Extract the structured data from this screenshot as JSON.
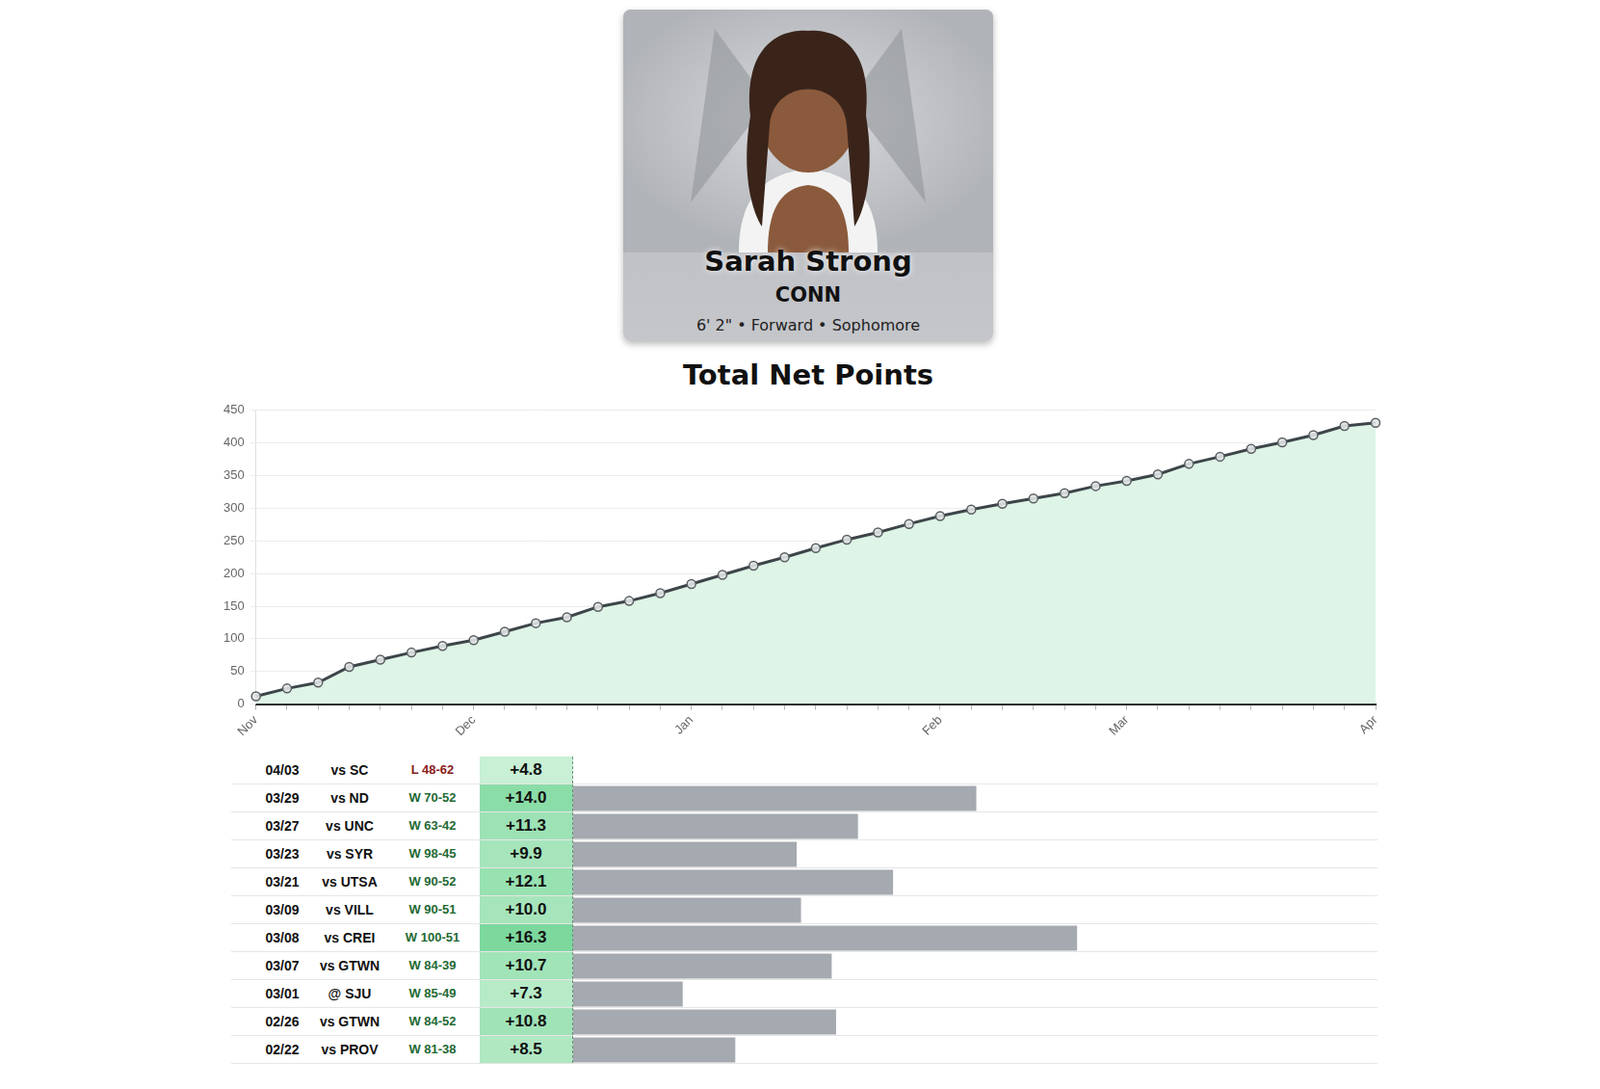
{
  "profile": {
    "name": "Sarah Strong",
    "team": "CONN",
    "details": "6' 2\" • Forward • Sophomore"
  },
  "chart_data": [
    {
      "type": "line",
      "title": "Total Net Points",
      "categories": [
        "Nov",
        null,
        null,
        null,
        null,
        null,
        null,
        "Dec",
        null,
        null,
        null,
        null,
        null,
        null,
        "Jan",
        null,
        null,
        null,
        null,
        null,
        null,
        null,
        "Feb",
        null,
        null,
        null,
        null,
        null,
        "Mar",
        null,
        null,
        null,
        null,
        null,
        null,
        null,
        "Apr"
      ],
      "values": [
        12,
        24,
        33,
        57,
        68,
        79,
        89,
        98,
        111,
        124,
        133,
        149,
        158,
        170,
        184,
        198,
        212,
        225,
        239,
        252,
        263,
        276,
        288,
        298,
        307,
        315,
        323,
        334,
        342,
        352,
        368,
        379,
        391,
        401,
        412,
        426,
        431
      ],
      "color": "#3d4549",
      "ylim": [
        0,
        450
      ],
      "yticks": [
        0,
        50,
        100,
        150,
        200,
        250,
        300,
        350,
        400,
        450
      ],
      "grid": true,
      "marker": "circle"
    },
    {
      "type": "bar",
      "orientation": "horizontal",
      "tick_labels": false,
      "categories": [
        "04/03",
        "03/29",
        "03/27",
        "03/23",
        "03/21",
        "03/09",
        "03/08",
        "03/07",
        "03/01",
        "02/26",
        "02/22"
      ],
      "opponents": [
        "vs SC",
        "vs ND",
        "vs UNC",
        "vs SYR",
        "vs UTSA",
        "vs VILL",
        "vs CREI",
        "vs GTWN",
        "@ SJU",
        "vs GTWN",
        "vs PROV"
      ],
      "results": [
        "L 48-62",
        "W 70-52",
        "W 63-42",
        "W 98-45",
        "W 90-52",
        "W 90-51",
        "W 100-51",
        "W 84-39",
        "W 85-49",
        "W 84-52",
        "W 81-38"
      ],
      "values": [
        4.8,
        14.0,
        11.3,
        9.9,
        12.1,
        10.0,
        16.3,
        10.7,
        7.3,
        10.8,
        8.5
      ],
      "value_labels": [
        "+4.8",
        "+14.0",
        "+11.3",
        "+9.9",
        "+12.1",
        "+10.0",
        "+16.3",
        "+10.7",
        "+7.3",
        "+10.8",
        "+8.5"
      ],
      "color": "#a5a9b0",
      "xlim": [
        4.8,
        23.0
      ]
    }
  ]
}
